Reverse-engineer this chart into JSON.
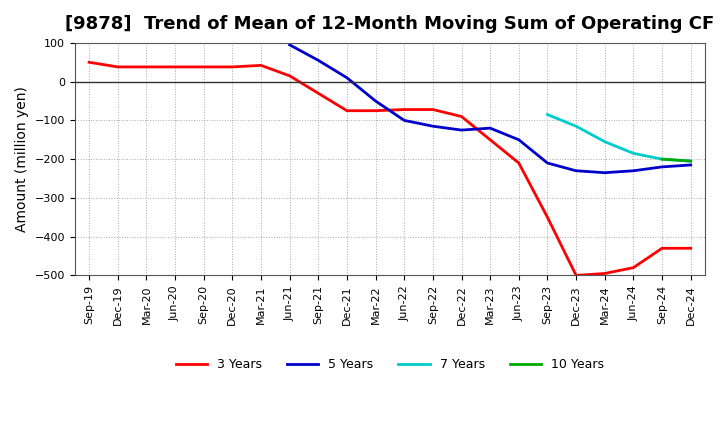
{
  "title": "[9878]  Trend of Mean of 12-Month Moving Sum of Operating CF",
  "ylabel": "Amount (million yen)",
  "ylim": [
    -500,
    100
  ],
  "yticks": [
    -500,
    -400,
    -300,
    -200,
    -100,
    0,
    100
  ],
  "background_color": "#ffffff",
  "grid_color": "#aaaaaa",
  "line_color_zero": "#333333",
  "series": {
    "3 Years": {
      "color": "#ff0000",
      "dates": [
        "Sep-19",
        "Dec-19",
        "Mar-20",
        "Jun-20",
        "Sep-20",
        "Dec-20",
        "Mar-21",
        "Jun-21",
        "Sep-21",
        "Dec-21",
        "Mar-22",
        "Jun-22",
        "Sep-22",
        "Dec-22",
        "Mar-23",
        "Jun-23",
        "Sep-23",
        "Dec-23",
        "Mar-24",
        "Jun-24",
        "Sep-24",
        "Dec-24"
      ],
      "values": [
        50,
        38,
        38,
        38,
        38,
        38,
        42,
        15,
        -30,
        -75,
        -75,
        -72,
        -72,
        -90,
        -150,
        -210,
        -350,
        -500,
        -495,
        -480,
        -430,
        -430
      ]
    },
    "5 Years": {
      "color": "#0000cc",
      "dates": [
        "Jun-21",
        "Sep-21",
        "Dec-21",
        "Mar-22",
        "Jun-22",
        "Sep-22",
        "Dec-22",
        "Mar-23",
        "Jun-23",
        "Sep-23",
        "Dec-23",
        "Mar-24",
        "Jun-24",
        "Sep-24",
        "Dec-24"
      ],
      "values": [
        95,
        55,
        10,
        -50,
        -100,
        -115,
        -125,
        -120,
        -150,
        -210,
        -230,
        -235,
        -230,
        -220,
        -215
      ]
    },
    "7 Years": {
      "color": "#00cccc",
      "dates": [
        "Sep-23",
        "Dec-23",
        "Mar-24",
        "Jun-24",
        "Sep-24",
        "Dec-24"
      ],
      "values": [
        -85,
        -115,
        -155,
        -185,
        -200,
        -205
      ]
    },
    "10 Years": {
      "color": "#00aa00",
      "dates": [
        "Sep-24",
        "Dec-24"
      ],
      "values": [
        -200,
        -205
      ]
    }
  },
  "legend_labels": [
    "3 Years",
    "5 Years",
    "7 Years",
    "10 Years"
  ],
  "xtick_labels": [
    "Sep-19",
    "Dec-19",
    "Mar-20",
    "Jun-20",
    "Sep-20",
    "Dec-20",
    "Mar-21",
    "Jun-21",
    "Sep-21",
    "Dec-21",
    "Mar-22",
    "Jun-22",
    "Sep-22",
    "Dec-22",
    "Mar-23",
    "Jun-23",
    "Sep-23",
    "Dec-23",
    "Mar-24",
    "Jun-24",
    "Sep-24",
    "Dec-24"
  ],
  "title_fontsize": 13,
  "axis_label_fontsize": 10,
  "tick_fontsize": 8
}
